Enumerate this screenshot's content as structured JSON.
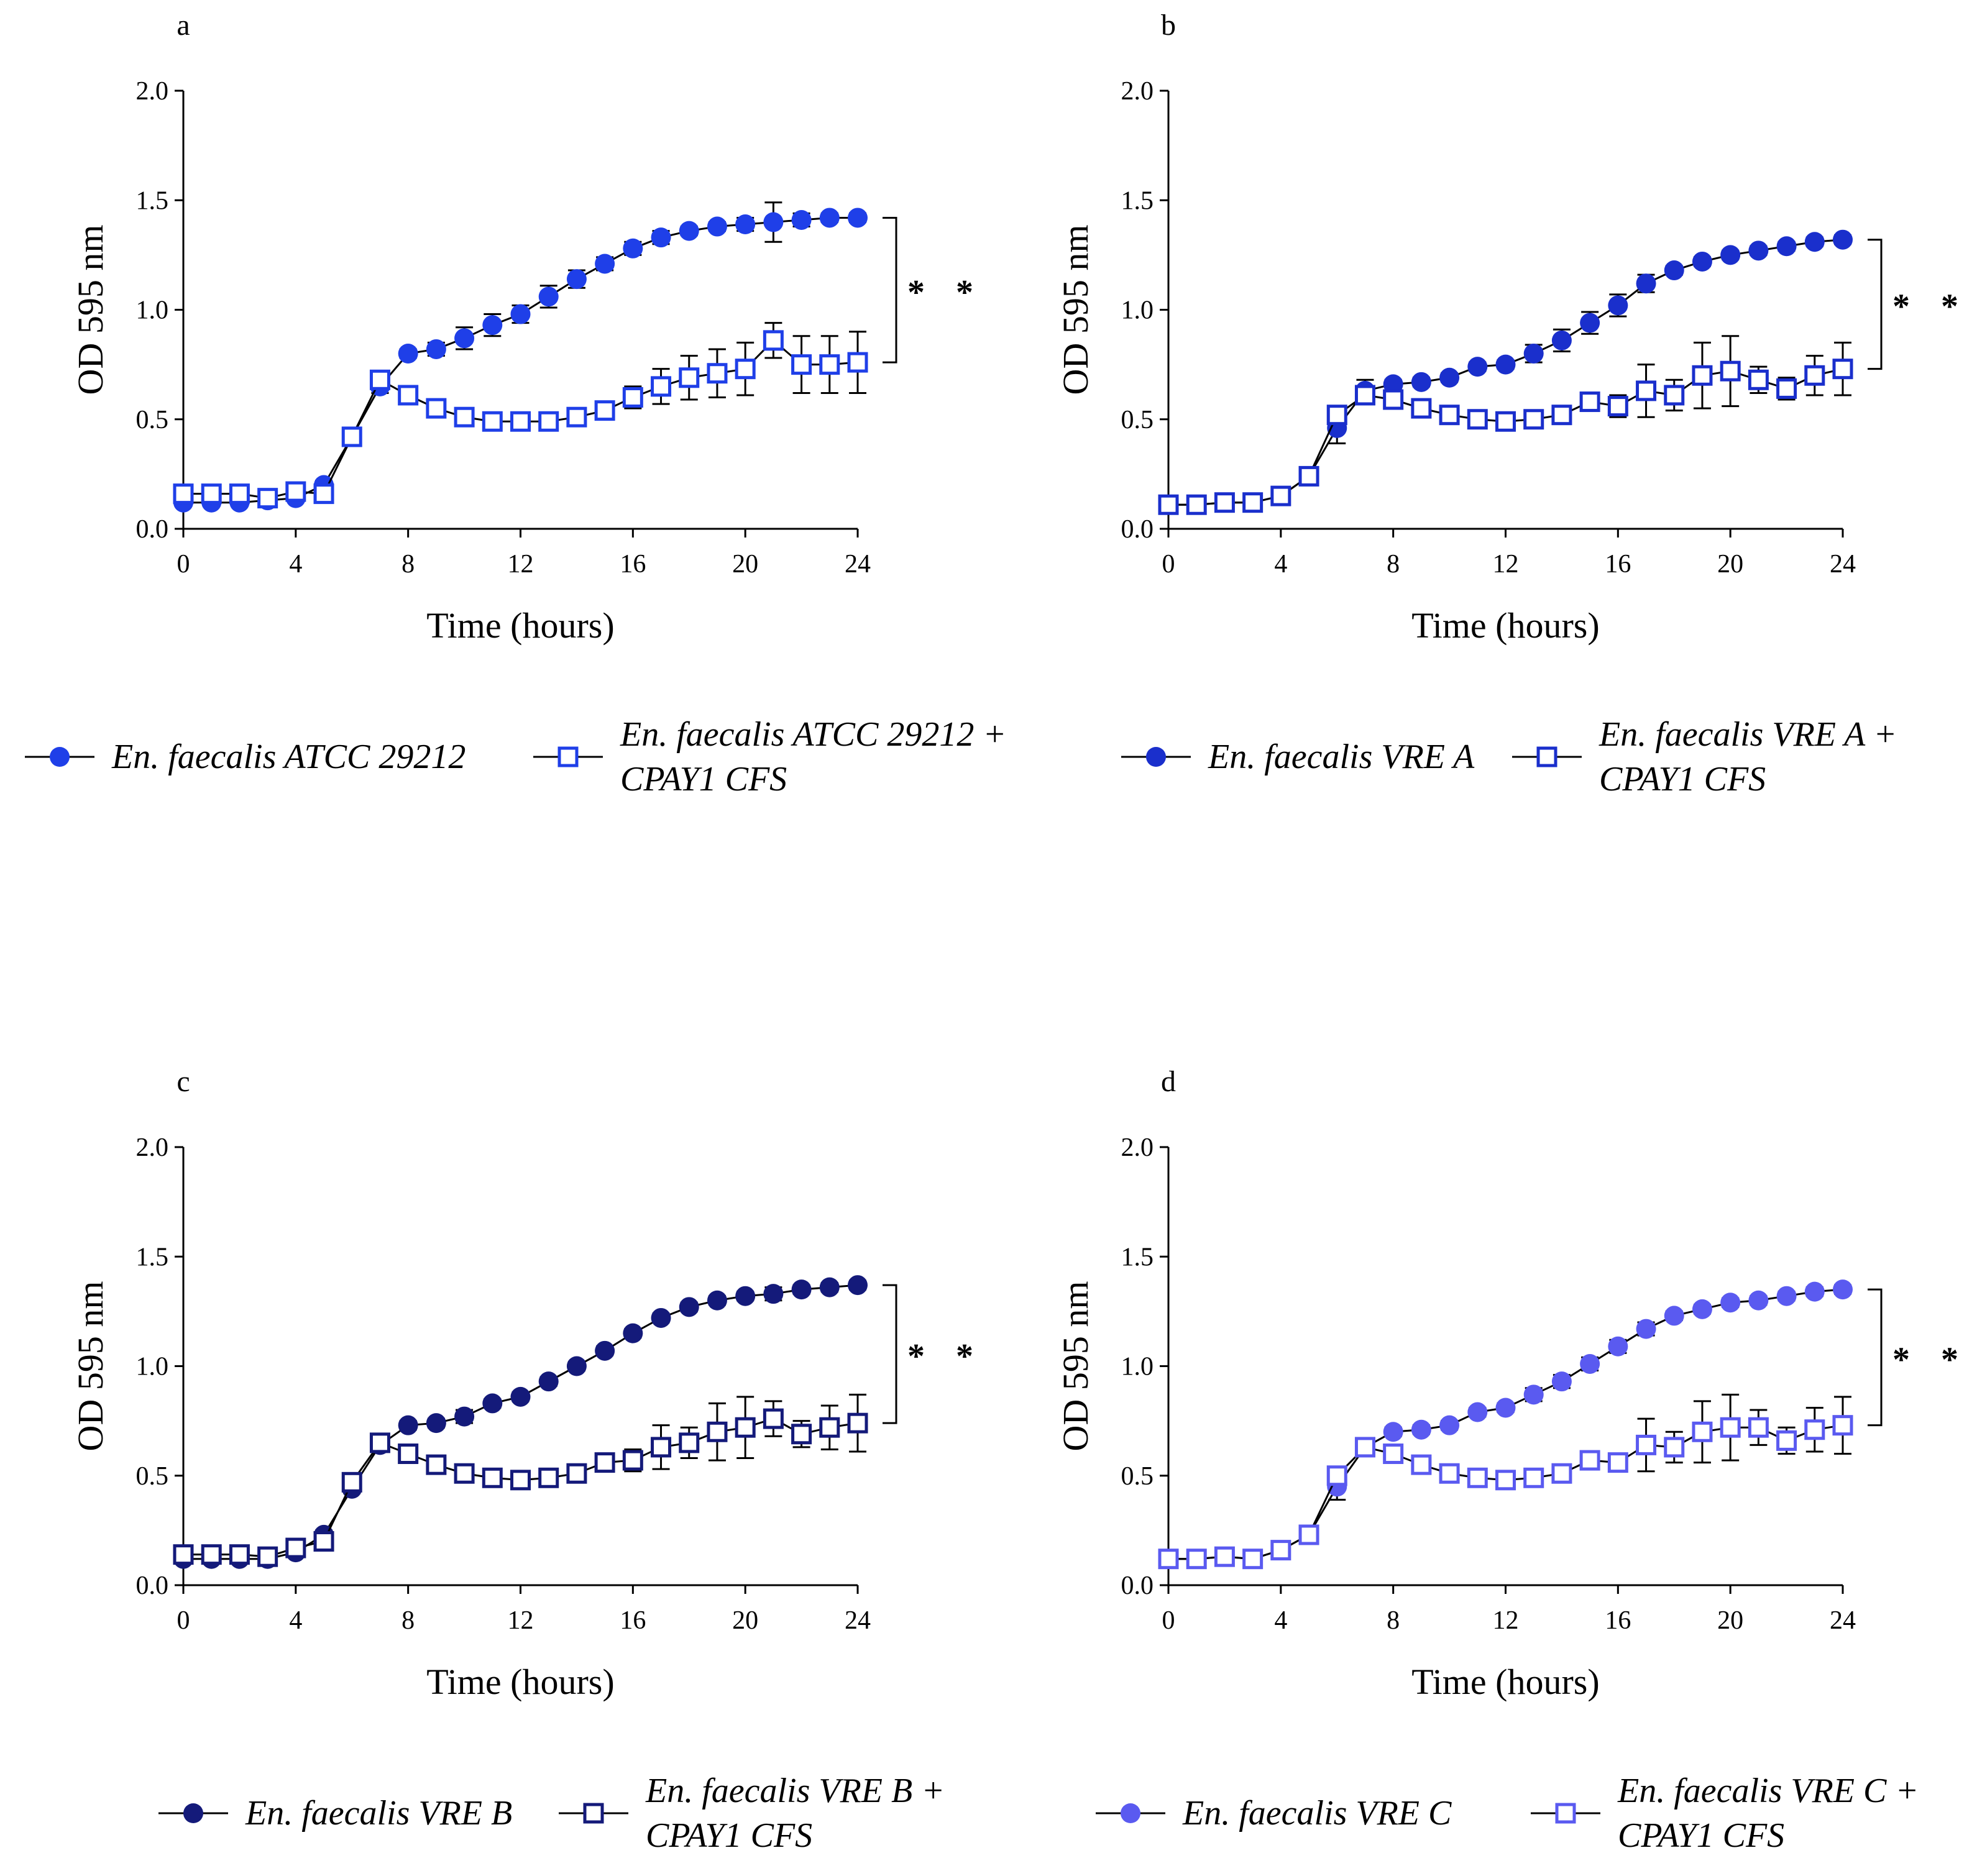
{
  "chart_data": [
    {
      "type": "line",
      "panel": "a",
      "xlabel": "Time (hours)",
      "ylabel": "OD 595 nm",
      "annotation": "* *",
      "x": [
        0,
        1,
        2,
        3,
        4,
        5,
        6,
        7,
        8,
        9,
        10,
        11,
        12,
        13,
        14,
        15,
        16,
        17,
        18,
        19,
        20,
        21,
        22,
        23,
        24
      ],
      "xlim": [
        0,
        24
      ],
      "xticks": [
        0,
        4,
        8,
        12,
        16,
        20,
        24
      ],
      "ylim": [
        0,
        2
      ],
      "yticks": [
        {
          "value": 0,
          "label": "0.0"
        },
        {
          "value": 0.5,
          "label": "0.5"
        },
        {
          "value": 1,
          "label": "1.0"
        },
        {
          "value": 1.5,
          "label": "1.5"
        },
        {
          "value": 2,
          "label": "2.0"
        }
      ],
      "series": [
        {
          "name": "En. faecalis ATCC 29212",
          "color": "#1f3fe8",
          "marker": "circle",
          "values": [
            0.12,
            0.12,
            0.12,
            0.13,
            0.14,
            0.2,
            0.42,
            0.65,
            0.8,
            0.82,
            0.87,
            0.93,
            0.98,
            1.06,
            1.14,
            1.21,
            1.28,
            1.33,
            1.36,
            1.38,
            1.39,
            1.4,
            1.41,
            1.42,
            1.42
          ],
          "errors": [
            0.01,
            0.01,
            0.01,
            0.01,
            0.01,
            0.02,
            0.02,
            0.03,
            0.02,
            0.03,
            0.05,
            0.05,
            0.04,
            0.05,
            0.04,
            0.03,
            0.03,
            0.03,
            0.02,
            0.02,
            0.03,
            0.09,
            0.03,
            0.02,
            0.02
          ]
        },
        {
          "name": "En. faecalis ATCC 29212 + CPAY1 CFS",
          "color": "#1f3fe8",
          "marker": "square",
          "values": [
            0.16,
            0.16,
            0.16,
            0.14,
            0.17,
            0.16,
            0.42,
            0.68,
            0.61,
            0.55,
            0.51,
            0.49,
            0.49,
            0.49,
            0.51,
            0.54,
            0.6,
            0.65,
            0.69,
            0.71,
            0.73,
            0.86,
            0.75,
            0.75,
            0.76
          ],
          "errors": [
            0.01,
            0.01,
            0.01,
            0.01,
            0.01,
            0.01,
            0.02,
            0.03,
            0.02,
            0.02,
            0.02,
            0.02,
            0.02,
            0.02,
            0.02,
            0.03,
            0.05,
            0.08,
            0.1,
            0.11,
            0.12,
            0.08,
            0.13,
            0.13,
            0.14
          ]
        }
      ]
    },
    {
      "type": "line",
      "panel": "b",
      "xlabel": "Time (hours)",
      "ylabel": "OD 595 nm",
      "annotation": "* *",
      "x": [
        0,
        1,
        2,
        3,
        4,
        5,
        6,
        7,
        8,
        9,
        10,
        11,
        12,
        13,
        14,
        15,
        16,
        17,
        18,
        19,
        20,
        21,
        22,
        23,
        24
      ],
      "xlim": [
        0,
        24
      ],
      "xticks": [
        0,
        4,
        8,
        12,
        16,
        20,
        24
      ],
      "ylim": [
        0,
        2
      ],
      "yticks": [
        {
          "value": 0,
          "label": "0.0"
        },
        {
          "value": 0.5,
          "label": "0.5"
        },
        {
          "value": 1,
          "label": "1.0"
        },
        {
          "value": 1.5,
          "label": "1.5"
        },
        {
          "value": 2,
          "label": "2.0"
        }
      ],
      "series": [
        {
          "name": "En. faecalis VRE A",
          "color": "#1a2fcc",
          "marker": "circle",
          "values": [
            0.11,
            0.11,
            0.12,
            0.12,
            0.15,
            0.24,
            0.46,
            0.63,
            0.66,
            0.67,
            0.69,
            0.74,
            0.75,
            0.8,
            0.86,
            0.94,
            1.02,
            1.12,
            1.18,
            1.22,
            1.25,
            1.27,
            1.29,
            1.31,
            1.32
          ],
          "errors": [
            0.01,
            0.01,
            0.01,
            0.01,
            0.02,
            0.03,
            0.07,
            0.05,
            0.02,
            0.02,
            0.02,
            0.02,
            0.02,
            0.04,
            0.05,
            0.05,
            0.05,
            0.04,
            0.02,
            0.02,
            0.02,
            0.02,
            0.02,
            0.02,
            0.02
          ]
        },
        {
          "name": "En. faecalis VRE A + CPAY1 CFS",
          "color": "#1a2fcc",
          "marker": "square",
          "values": [
            0.11,
            0.11,
            0.12,
            0.12,
            0.15,
            0.24,
            0.52,
            0.61,
            0.59,
            0.55,
            0.52,
            0.5,
            0.49,
            0.5,
            0.52,
            0.58,
            0.56,
            0.63,
            0.61,
            0.7,
            0.72,
            0.68,
            0.64,
            0.7,
            0.73
          ],
          "errors": [
            0.01,
            0.01,
            0.01,
            0.01,
            0.02,
            0.02,
            0.03,
            0.03,
            0.02,
            0.02,
            0.02,
            0.02,
            0.02,
            0.03,
            0.03,
            0.03,
            0.05,
            0.12,
            0.07,
            0.15,
            0.16,
            0.06,
            0.05,
            0.09,
            0.12
          ]
        }
      ]
    },
    {
      "type": "line",
      "panel": "c",
      "xlabel": "Time (hours)",
      "ylabel": "OD 595 nm",
      "annotation": "* *",
      "x": [
        0,
        1,
        2,
        3,
        4,
        5,
        6,
        7,
        8,
        9,
        10,
        11,
        12,
        13,
        14,
        15,
        16,
        17,
        18,
        19,
        20,
        21,
        22,
        23,
        24
      ],
      "xlim": [
        0,
        24
      ],
      "xticks": [
        0,
        4,
        8,
        12,
        16,
        20,
        24
      ],
      "ylim": [
        0,
        2
      ],
      "yticks": [
        {
          "value": 0,
          "label": "0.0"
        },
        {
          "value": 0.5,
          "label": "0.5"
        },
        {
          "value": 1,
          "label": "1.0"
        },
        {
          "value": 1.5,
          "label": "1.5"
        },
        {
          "value": 2,
          "label": "2.0"
        }
      ],
      "series": [
        {
          "name": "En. faecalis VRE B",
          "color": "#141a7a",
          "marker": "circle",
          "values": [
            0.12,
            0.12,
            0.12,
            0.12,
            0.15,
            0.23,
            0.44,
            0.64,
            0.73,
            0.74,
            0.77,
            0.83,
            0.86,
            0.93,
            1.0,
            1.07,
            1.15,
            1.22,
            1.27,
            1.3,
            1.32,
            1.33,
            1.35,
            1.36,
            1.37
          ],
          "errors": [
            0.01,
            0.01,
            0.01,
            0.01,
            0.01,
            0.02,
            0.02,
            0.03,
            0.02,
            0.02,
            0.03,
            0.02,
            0.02,
            0.02,
            0.02,
            0.02,
            0.02,
            0.02,
            0.02,
            0.02,
            0.02,
            0.03,
            0.02,
            0.02,
            0.02
          ]
        },
        {
          "name": "En. faecalis VRE B + CPAY1 CFS",
          "color": "#141a7a",
          "marker": "square",
          "values": [
            0.14,
            0.14,
            0.14,
            0.13,
            0.17,
            0.2,
            0.47,
            0.65,
            0.6,
            0.55,
            0.51,
            0.49,
            0.48,
            0.49,
            0.51,
            0.56,
            0.57,
            0.63,
            0.65,
            0.7,
            0.72,
            0.76,
            0.69,
            0.72,
            0.74
          ],
          "errors": [
            0.01,
            0.01,
            0.01,
            0.01,
            0.01,
            0.01,
            0.02,
            0.03,
            0.02,
            0.02,
            0.02,
            0.02,
            0.02,
            0.02,
            0.02,
            0.03,
            0.05,
            0.1,
            0.07,
            0.13,
            0.14,
            0.08,
            0.06,
            0.1,
            0.13
          ]
        }
      ]
    },
    {
      "type": "line",
      "panel": "d",
      "xlabel": "Time (hours)",
      "ylabel": "OD 595 nm",
      "annotation": "* *",
      "x": [
        0,
        1,
        2,
        3,
        4,
        5,
        6,
        7,
        8,
        9,
        10,
        11,
        12,
        13,
        14,
        15,
        16,
        17,
        18,
        19,
        20,
        21,
        22,
        23,
        24
      ],
      "xlim": [
        0,
        24
      ],
      "xticks": [
        0,
        4,
        8,
        12,
        16,
        20,
        24
      ],
      "ylim": [
        0,
        2
      ],
      "yticks": [
        {
          "value": 0,
          "label": "0.0"
        },
        {
          "value": 0.5,
          "label": "0.5"
        },
        {
          "value": 1,
          "label": "1.0"
        },
        {
          "value": 1.5,
          "label": "1.5"
        },
        {
          "value": 2,
          "label": "2.0"
        }
      ],
      "series": [
        {
          "name": "En. faecalis VRE C",
          "color": "#5a5af0",
          "marker": "circle",
          "values": [
            0.12,
            0.12,
            0.13,
            0.12,
            0.16,
            0.23,
            0.45,
            0.63,
            0.7,
            0.71,
            0.73,
            0.79,
            0.81,
            0.87,
            0.93,
            1.01,
            1.09,
            1.17,
            1.23,
            1.26,
            1.29,
            1.3,
            1.32,
            1.34,
            1.35
          ],
          "errors": [
            0.01,
            0.01,
            0.01,
            0.01,
            0.01,
            0.02,
            0.06,
            0.03,
            0.02,
            0.02,
            0.02,
            0.02,
            0.02,
            0.03,
            0.03,
            0.03,
            0.03,
            0.03,
            0.02,
            0.02,
            0.02,
            0.02,
            0.02,
            0.02,
            0.02
          ]
        },
        {
          "name": "En. faecalis VRE C + CPAY1 CFS",
          "color": "#5a5af0",
          "marker": "square",
          "values": [
            0.12,
            0.12,
            0.13,
            0.12,
            0.16,
            0.23,
            0.5,
            0.63,
            0.6,
            0.55,
            0.51,
            0.49,
            0.48,
            0.49,
            0.51,
            0.57,
            0.56,
            0.64,
            0.63,
            0.7,
            0.72,
            0.72,
            0.66,
            0.71,
            0.73
          ],
          "errors": [
            0.01,
            0.01,
            0.01,
            0.01,
            0.01,
            0.02,
            0.03,
            0.03,
            0.02,
            0.02,
            0.02,
            0.02,
            0.02,
            0.02,
            0.02,
            0.03,
            0.04,
            0.12,
            0.07,
            0.14,
            0.15,
            0.08,
            0.06,
            0.1,
            0.13
          ]
        }
      ]
    }
  ]
}
